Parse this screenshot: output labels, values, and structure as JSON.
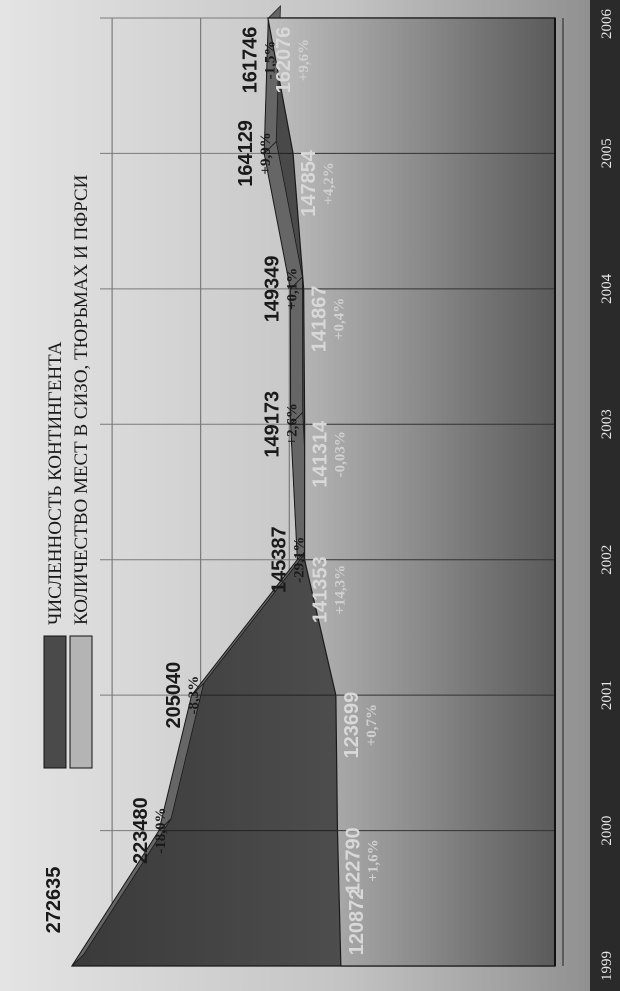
{
  "chart_data": {
    "type": "area",
    "orientation": "rotated-90-counterclockwise",
    "categories": [
      "1999",
      "2000",
      "2001",
      "2002",
      "2003",
      "2004",
      "2005",
      "2006"
    ],
    "series": [
      {
        "name": "ЧИСЛЕННОСТЬ КОНТИНГЕНТА",
        "color": "#4a4a4a",
        "values": [
          272635,
          223480,
          205040,
          145387,
          149173,
          149349,
          164129,
          161746
        ],
        "change_labels": [
          "",
          "-18,0%",
          "-8,3%",
          "-29,1%",
          "+2,6%",
          "+0,1%",
          "+9,9%",
          "-1,5%"
        ]
      },
      {
        "name": "КОЛИЧЕСТВО МЕСТ В СИЗО, ТЮРЬМАХ И ПФРСИ",
        "color": "#b4b4b4",
        "values": [
          120872,
          122790,
          123699,
          141353,
          141314,
          141867,
          147854,
          162076
        ],
        "change_labels": [
          "",
          "+1,6%",
          "+0,7%",
          "+14,3%",
          "-0,03%",
          "+0,4%",
          "+4,2%",
          "+9,6%"
        ]
      }
    ],
    "ylim": [
      0,
      290000
    ],
    "grid": true,
    "legend_position": "top"
  }
}
